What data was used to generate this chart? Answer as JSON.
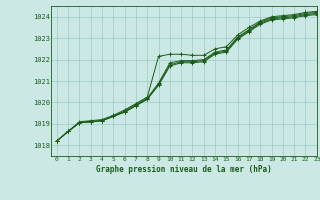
{
  "title": "Graphe pression niveau de la mer (hPa)",
  "bg_color": "#cce8e4",
  "grid_color": "#9ecbc6",
  "line_color": "#1a5c1a",
  "xlim": [
    -0.5,
    23
  ],
  "ylim": [
    1017.5,
    1024.5
  ],
  "yticks": [
    1018,
    1019,
    1020,
    1021,
    1022,
    1023,
    1024
  ],
  "xticks": [
    0,
    1,
    2,
    3,
    4,
    5,
    6,
    7,
    8,
    9,
    10,
    11,
    12,
    13,
    14,
    15,
    16,
    17,
    18,
    19,
    20,
    21,
    22,
    23
  ],
  "series1": [
    1018.2,
    1018.65,
    1019.1,
    1019.15,
    1019.2,
    1019.4,
    1019.65,
    1019.95,
    1020.25,
    1022.15,
    1022.25,
    1022.25,
    1022.2,
    1022.2,
    1022.5,
    1022.6,
    1023.15,
    1023.5,
    1023.8,
    1024.0,
    1024.05,
    1024.1,
    1024.2,
    1024.25
  ],
  "series2": [
    1018.2,
    1018.65,
    1019.05,
    1019.1,
    1019.15,
    1019.35,
    1019.6,
    1019.9,
    1020.2,
    1020.9,
    1021.85,
    1021.95,
    1021.95,
    1022.0,
    1022.35,
    1022.45,
    1023.05,
    1023.4,
    1023.75,
    1023.95,
    1024.0,
    1024.05,
    1024.15,
    1024.2
  ],
  "series3": [
    1018.2,
    1018.65,
    1019.05,
    1019.1,
    1019.15,
    1019.35,
    1019.55,
    1019.85,
    1020.15,
    1020.85,
    1021.75,
    1021.9,
    1021.9,
    1021.95,
    1022.3,
    1022.4,
    1023.0,
    1023.35,
    1023.7,
    1023.9,
    1023.95,
    1024.0,
    1024.1,
    1024.15
  ],
  "series4": [
    1018.2,
    1018.65,
    1019.05,
    1019.1,
    1019.15,
    1019.35,
    1019.55,
    1019.85,
    1020.15,
    1020.8,
    1021.7,
    1021.85,
    1021.85,
    1021.9,
    1022.25,
    1022.35,
    1022.95,
    1023.3,
    1023.65,
    1023.85,
    1023.9,
    1023.95,
    1024.05,
    1024.1
  ]
}
